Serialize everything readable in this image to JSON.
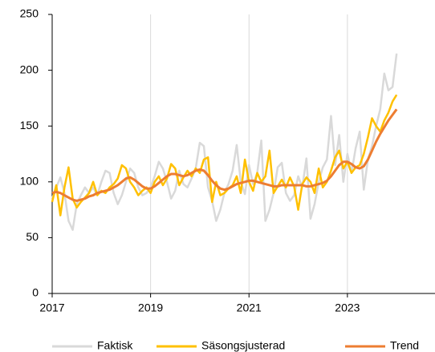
{
  "chart_data": {
    "type": "line",
    "x": [
      2017,
      2017.083,
      2017.167,
      2017.25,
      2017.333,
      2017.417,
      2017.5,
      2017.583,
      2017.667,
      2017.75,
      2017.833,
      2017.917,
      2018,
      2018.083,
      2018.167,
      2018.25,
      2018.333,
      2018.417,
      2018.5,
      2018.583,
      2018.667,
      2018.75,
      2018.833,
      2018.917,
      2019,
      2019.083,
      2019.167,
      2019.25,
      2019.333,
      2019.417,
      2019.5,
      2019.583,
      2019.667,
      2019.75,
      2019.833,
      2019.917,
      2020,
      2020.083,
      2020.167,
      2020.25,
      2020.333,
      2020.417,
      2020.5,
      2020.583,
      2020.667,
      2020.75,
      2020.833,
      2020.917,
      2021,
      2021.083,
      2021.167,
      2021.25,
      2021.333,
      2021.417,
      2021.5,
      2021.583,
      2021.667,
      2021.75,
      2021.833,
      2021.917,
      2022,
      2022.083,
      2022.167,
      2022.25,
      2022.333,
      2022.417,
      2022.5,
      2022.583,
      2022.667,
      2022.75,
      2022.833,
      2022.917,
      2023,
      2023.083,
      2023.167,
      2023.25,
      2023.333,
      2023.417,
      2023.5,
      2023.583,
      2023.667,
      2023.75,
      2023.833,
      2023.917,
      2024
    ],
    "series": [
      {
        "name": "Faktisk",
        "color": "#d9d9d9",
        "values": [
          85,
          95,
          104,
          90,
          65,
          57,
          80,
          88,
          95,
          90,
          95,
          88,
          100,
          110,
          108,
          90,
          80,
          88,
          100,
          112,
          108,
          95,
          88,
          90,
          95,
          105,
          118,
          112,
          100,
          85,
          92,
          110,
          98,
          95,
          103,
          112,
          135,
          132,
          95,
          83,
          65,
          75,
          90,
          98,
          110,
          133,
          100,
          89,
          115,
          98,
          108,
          137,
          65,
          75,
          90,
          113,
          117,
          90,
          83,
          88,
          105,
          95,
          121,
          67,
          80,
          100,
          113,
          120,
          159,
          115,
          142,
          100,
          125,
          108,
          130,
          145,
          93,
          120,
          132,
          150,
          165,
          197,
          182,
          185,
          215
        ]
      },
      {
        "name": "Säsongsjusterad",
        "color": "#ffc000",
        "values": [
          82,
          97,
          70,
          95,
          113,
          85,
          77,
          82,
          86,
          90,
          100,
          88,
          92,
          90,
          95,
          98,
          103,
          115,
          112,
          100,
          95,
          88,
          92,
          95,
          90,
          100,
          105,
          97,
          103,
          116,
          112,
          97,
          104,
          110,
          105,
          112,
          108,
          120,
          122,
          82,
          100,
          88,
          90,
          94,
          97,
          105,
          90,
          120,
          100,
          92,
          108,
          100,
          105,
          128,
          90,
          96,
          102,
          95,
          104,
          96,
          75,
          98,
          104,
          100,
          90,
          112,
          95,
          100,
          110,
          122,
          128,
          112,
          118,
          108,
          113,
          115,
          125,
          140,
          157,
          150,
          145,
          155,
          162,
          172,
          178
        ]
      },
      {
        "name": "Trend",
        "color": "#ed7d31",
        "values": [
          90,
          91,
          90,
          88,
          86,
          84,
          83,
          84,
          85,
          87,
          88,
          90,
          91,
          92,
          93,
          95,
          97,
          100,
          103,
          104,
          102,
          99,
          96,
          94,
          94,
          96,
          99,
          102,
          105,
          107,
          107,
          106,
          105,
          106,
          108,
          110,
          111,
          110,
          106,
          101,
          97,
          94,
          93,
          94,
          96,
          98,
          99,
          100,
          101,
          101,
          100,
          99,
          98,
          97,
          96,
          96,
          97,
          97,
          97,
          97,
          97,
          97,
          96,
          96,
          97,
          98,
          99,
          101,
          105,
          110,
          115,
          118,
          118,
          116,
          113,
          112,
          114,
          120,
          128,
          136,
          143,
          149,
          155,
          160,
          165
        ]
      }
    ],
    "xlim": [
      2017,
      2024.78
    ],
    "xticks": [
      2017,
      2019,
      2021,
      2023
    ],
    "ylim": [
      0,
      250
    ],
    "yticks": [
      0,
      50,
      100,
      150,
      200,
      250
    ],
    "grid": true,
    "legend": "bottom"
  }
}
